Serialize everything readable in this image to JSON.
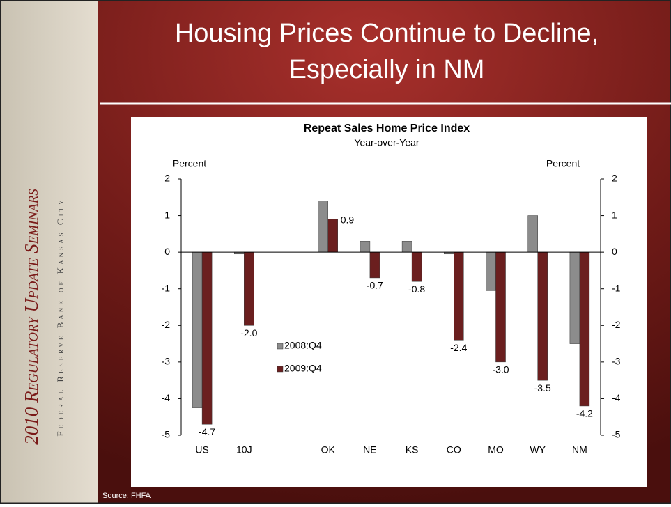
{
  "slide": {
    "title_lines": [
      "Housing Prices Continue to Decline,",
      "Especially in NM"
    ],
    "sidebar_title": "2010 Regulatory Update Seminars",
    "sidebar_subtitle": "Federal Reserve Bank of Kansas City",
    "source": "Source: FHFA"
  },
  "chart_data": {
    "type": "bar",
    "title": "Repeat Sales Home Price Index",
    "subtitle": "Year-over-Year",
    "y_label": "Percent",
    "y2_label": "Percent",
    "categories": [
      "US",
      "10J",
      null,
      "OK",
      "NE",
      "KS",
      "CO",
      "MO",
      "WY",
      "NM"
    ],
    "series": [
      {
        "name": "2008:Q4",
        "color": "#8c8c8c",
        "values": [
          -4.25,
          -0.05,
          null,
          1.4,
          0.3,
          0.3,
          -0.05,
          -1.05,
          1.0,
          -2.5
        ]
      },
      {
        "name": "2009:Q4",
        "color": "#6b1f1f",
        "values": [
          -4.7,
          -2.0,
          null,
          0.9,
          -0.7,
          -0.8,
          -2.4,
          -3.0,
          -3.5,
          -4.2
        ],
        "value_labels": [
          "-4.7",
          "-2.0",
          null,
          "0.9",
          "-0.7",
          "-0.8",
          "-2.4",
          "-3.0",
          "-3.5",
          "-4.2"
        ]
      }
    ],
    "ylim": [
      -5,
      2
    ],
    "yticks": [
      -5,
      -4,
      -3,
      -2,
      -1,
      0,
      1,
      2
    ],
    "y2lim": [
      -5,
      2
    ],
    "y2ticks": [
      -5,
      -4,
      -3,
      -2,
      -1,
      0,
      1,
      2
    ]
  }
}
